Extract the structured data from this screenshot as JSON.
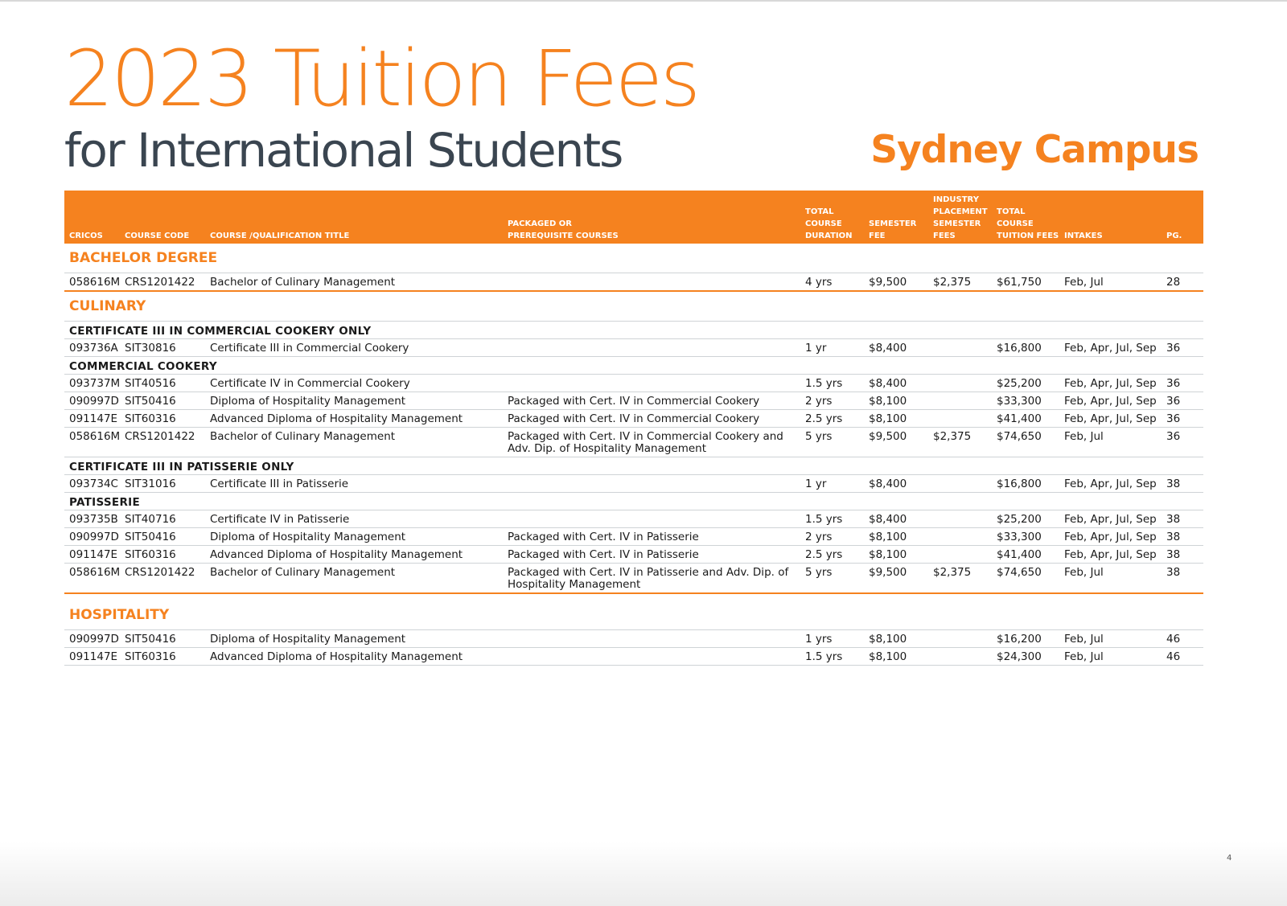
{
  "header": {
    "title": "2023 Tuition Fees",
    "subtitle": "for International Students",
    "campus": "Sydney Campus"
  },
  "colors": {
    "accent": "#f5821f",
    "subtitle": "#3a4550"
  },
  "columns": [
    "CRICOS",
    "COURSE CODE",
    "COURSE /QUALIFICATION TITLE",
    "PACKAGED OR\nPREREQUISITE COURSES",
    "TOTAL\nCOURSE\nDURATION",
    "SEMESTER\nFEE",
    "INDUSTRY\nPLACEMENT\nSEMESTER\nFEES",
    "TOTAL\nCOURSE\nTUITION FEES",
    "INTAKES",
    "PG."
  ],
  "rows": [
    {
      "type": "section",
      "label": "BACHELOR DEGREE"
    },
    {
      "type": "row",
      "end": true,
      "cells": [
        "058616M",
        "CRS1201422",
        "Bachelor of Culinary Management",
        "",
        "4 yrs",
        "$9,500",
        "$2,375",
        "$61,750",
        "Feb, Jul",
        "28"
      ]
    },
    {
      "type": "section",
      "label": "CULINARY"
    },
    {
      "type": "sub",
      "label": "CERTIFICATE III IN COMMERCIAL COOKERY ONLY"
    },
    {
      "type": "row",
      "cells": [
        "093736A",
        "SIT30816",
        "Certificate III in Commercial Cookery",
        "",
        "1 yr",
        "$8,400",
        "",
        "$16,800",
        "Feb, Apr, Jul, Sep",
        "36"
      ]
    },
    {
      "type": "sub",
      "label": "COMMERCIAL COOKERY"
    },
    {
      "type": "row",
      "cells": [
        "093737M",
        "SIT40516",
        "Certificate IV in Commercial Cookery",
        "",
        "1.5 yrs",
        "$8,400",
        "",
        "$25,200",
        "Feb, Apr, Jul, Sep",
        "36"
      ]
    },
    {
      "type": "row",
      "cells": [
        "090997D",
        "SIT50416",
        "Diploma of Hospitality Management",
        "Packaged with Cert. IV in Commercial Cookery",
        "2 yrs",
        "$8,100",
        "",
        "$33,300",
        "Feb, Apr, Jul, Sep",
        "36"
      ]
    },
    {
      "type": "row",
      "cells": [
        "091147E",
        "SIT60316",
        "Advanced Diploma of Hospitality Management",
        "Packaged with Cert. IV in Commercial Cookery",
        "2.5 yrs",
        "$8,100",
        "",
        "$41,400",
        "Feb, Apr, Jul, Sep",
        "36"
      ]
    },
    {
      "type": "row",
      "cells": [
        "058616M",
        "CRS1201422",
        "Bachelor of Culinary Management",
        "Packaged with Cert. IV in Commercial Cookery and Adv. Dip. of Hospitality Management",
        "5 yrs",
        "$9,500",
        "$2,375",
        "$74,650",
        "Feb, Jul",
        "36"
      ]
    },
    {
      "type": "sub",
      "label": "CERTIFICATE III IN PATISSERIE ONLY"
    },
    {
      "type": "row",
      "cells": [
        "093734C",
        "SIT31016",
        "Certificate III in Patisserie",
        "",
        "1 yr",
        "$8,400",
        "",
        "$16,800",
        "Feb, Apr, Jul, Sep",
        "38"
      ]
    },
    {
      "type": "sub",
      "label": "PATISSERIE"
    },
    {
      "type": "row",
      "cells": [
        "093735B",
        "SIT40716",
        "Certificate IV in Patisserie",
        "",
        "1.5 yrs",
        "$8,400",
        "",
        "$25,200",
        "Feb, Apr, Jul, Sep",
        "38"
      ]
    },
    {
      "type": "row",
      "cells": [
        "090997D",
        "SIT50416",
        "Diploma of Hospitality Management",
        "Packaged with Cert. IV in Patisserie",
        "2 yrs",
        "$8,100",
        "",
        "$33,300",
        "Feb, Apr, Jul, Sep",
        "38"
      ]
    },
    {
      "type": "row",
      "cells": [
        "091147E",
        "SIT60316",
        "Advanced Diploma of Hospitality Management",
        "Packaged with Cert. IV in Patisserie",
        "2.5 yrs",
        "$8,100",
        "",
        "$41,400",
        "Feb, Apr, Jul, Sep",
        "38"
      ]
    },
    {
      "type": "row",
      "end": true,
      "tall": true,
      "cells": [
        "058616M",
        "CRS1201422",
        "Bachelor of Culinary Management",
        "Packaged with Cert. IV in Patisserie and Adv. Dip. of Hospitality Management",
        "5 yrs",
        "$9,500",
        "$2,375",
        "$74,650",
        "Feb, Jul",
        "38"
      ]
    },
    {
      "type": "section",
      "label": "HOSPITALITY"
    },
    {
      "type": "row",
      "cells": [
        "090997D",
        "SIT50416",
        "Diploma of Hospitality Management",
        "",
        "1 yrs",
        "$8,100",
        "",
        "$16,200",
        "Feb, Jul",
        "46"
      ]
    },
    {
      "type": "row",
      "cells": [
        "091147E",
        "SIT60316",
        "Advanced Diploma of Hospitality Management",
        "",
        "1.5 yrs",
        "$8,100",
        "",
        "$24,300",
        "Feb, Jul",
        "46"
      ]
    }
  ],
  "page_number": "4"
}
